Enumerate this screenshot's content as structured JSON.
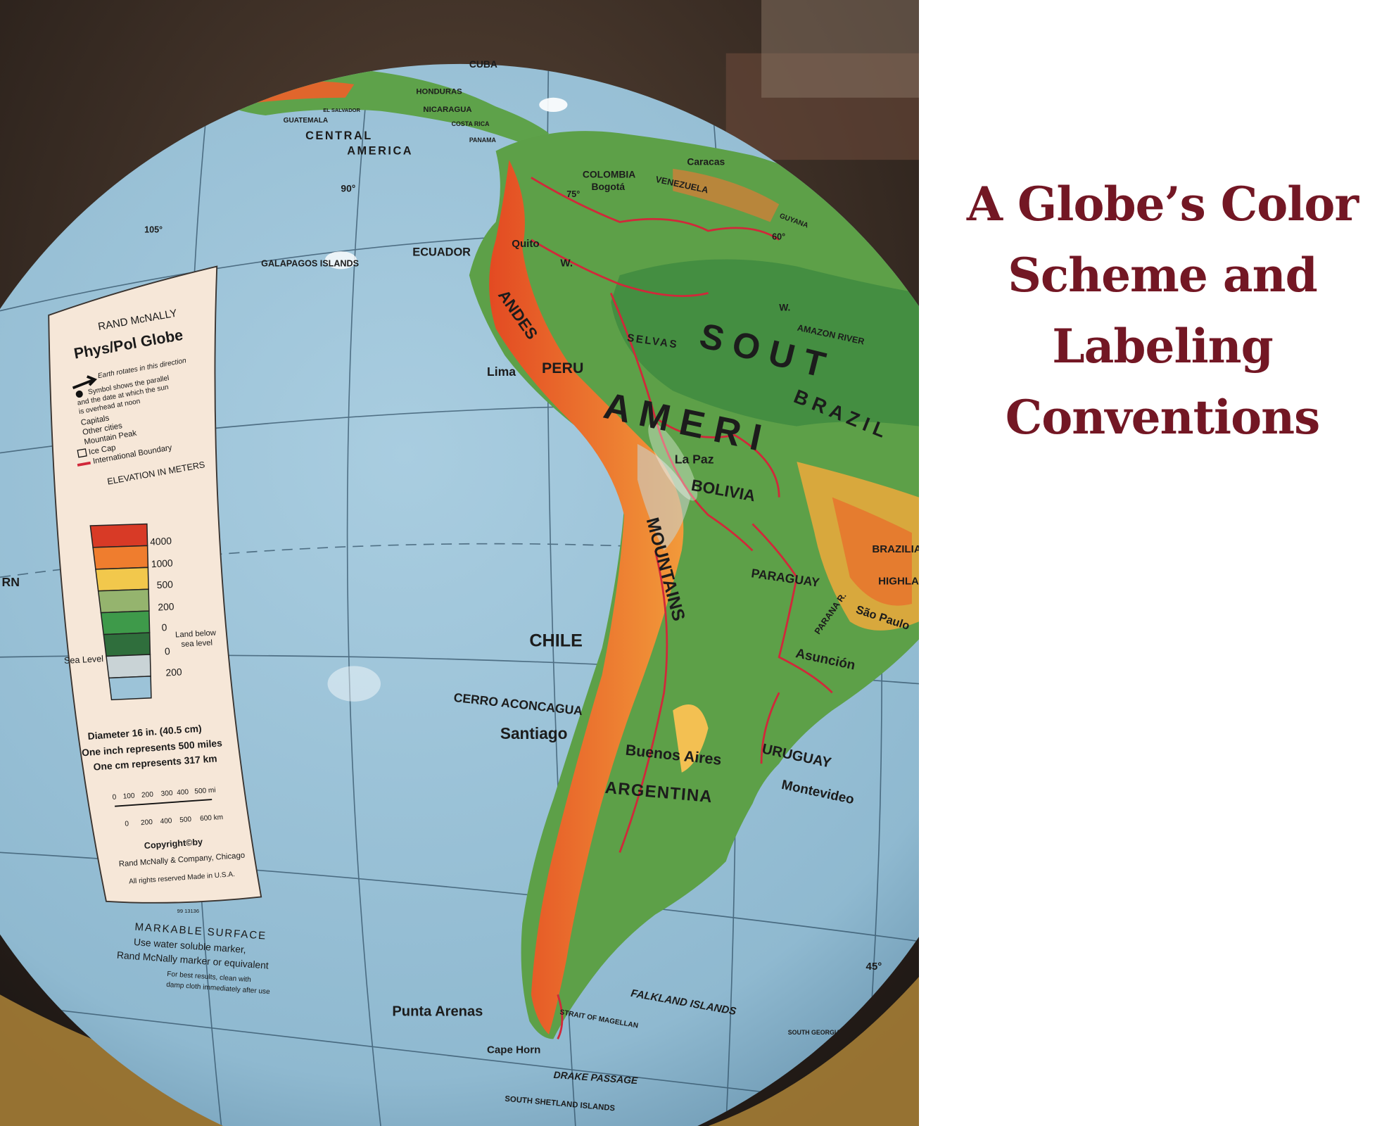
{
  "slide": {
    "title_lines": [
      "A Globe’s Color",
      "Scheme and",
      "Labeling",
      "Conventions"
    ],
    "title_color": "#731724"
  },
  "photo": {
    "subject": "globe",
    "legend": {
      "brand": "RAND McNALLY",
      "product": "Phys/Pol Globe",
      "rotation_note": "Earth rotates in this direction",
      "sun_note": [
        "Symbol shows the parallel",
        "and the date at which the sun",
        "is overhead at noon"
      ],
      "symbols": [
        "Capitals",
        "Other cities",
        "Mountain Peak",
        "Ice Cap",
        "International Boundary"
      ],
      "elevation_title": "ELEVATION IN METERS",
      "elevation_ticks": [
        "4000",
        "1000",
        "500",
        "200",
        "0",
        "0",
        "200"
      ],
      "elevation_colors": [
        "#d83a26",
        "#ef7d2e",
        "#f2c84c",
        "#95b46e",
        "#3e9a4a",
        "#2f6e3c",
        "#c9d3d6",
        "#9cc3d8"
      ],
      "below_sea_note": [
        "Land below",
        "sea level"
      ],
      "sea_level": "Sea Level",
      "scale_text": [
        "Diameter 16 in. (40.5 cm)",
        "One inch represents 500 miles",
        "One cm represents 317 km"
      ],
      "scale_mi": [
        "0",
        "100",
        "200",
        "300",
        "400",
        "500 mi"
      ],
      "scale_km": [
        "0",
        "200",
        "400",
        "500",
        "600 km"
      ],
      "copyright": [
        "Copyright©by",
        "Rand McNally & Company, Chicago",
        "All rights reserved   Made in U.S.A."
      ],
      "code": "99   13136"
    },
    "surface_note": [
      "MARKABLE SURFACE",
      "Use water soluble marker,",
      "Rand McNally marker or equivalent",
      "For best results, clean with",
      "damp cloth immediately after use"
    ],
    "map_labels": {
      "central_america": "CENTRAL",
      "america": "AMERICA",
      "guatemala": "GUATEMALA",
      "el_salvador": "EL SALVADOR",
      "nicaragua": "NICARAGUA",
      "honduras": "HONDURAS",
      "costa_rica": "COSTA RICA",
      "panama": "PANAMA",
      "cuba": "CUBA",
      "caracas": "Caracas",
      "colombia": "COLOMBIA",
      "bogota": "Bogotá",
      "venezuela": "VENEZUELA",
      "guyana": "GUYANA",
      "ecuador": "ECUADOR",
      "quito": "Quito",
      "galapagos": "GALAPAGOS ISLANDS",
      "lon_90": "90°",
      "lon_105": "105°",
      "lon_75": "75°",
      "lon_60": "60°",
      "w1": "W.",
      "w2": "W.",
      "selvas": "SELVAS",
      "amazon": "AMAZON RIVER",
      "south": "S O U T",
      "america_big": "A M E R I",
      "brazil": "B R A Z I L",
      "peru": "PERU",
      "lima": "Lima",
      "andes": "ANDES",
      "la_paz": "La Paz",
      "bolivia": "BOLIVIA",
      "brazilian": "BRAZILIA",
      "highlands": "HIGHLA",
      "paraguay": "PARAGUAY",
      "parana": "PARANA R.",
      "sao_paulo": "São Paulo",
      "asuncion": "Asunción",
      "chile": "CHILE",
      "mountains": "MOUNTAINS",
      "aconcagua": "CERRO ACONCAGUA",
      "santiago": "Santiago",
      "buenos_aires": "Buenos Aires",
      "uruguay": "URUGUAY",
      "montevideo": "Montevideo",
      "argentina": "ARGENTINA",
      "falkland": "FALKLAND ISLANDS",
      "punta_arenas": "Punta Arenas",
      "strait": "STRAIT OF MAGELLAN",
      "cape_horn": "Cape Horn",
      "drake": "DRAKE PASSAGE",
      "south_shetland": "SOUTH SHETLAND ISLANDS",
      "south_georgia": "SOUTH GEORGIA",
      "lat_45": "45°",
      "horn_edge": "RN"
    }
  }
}
